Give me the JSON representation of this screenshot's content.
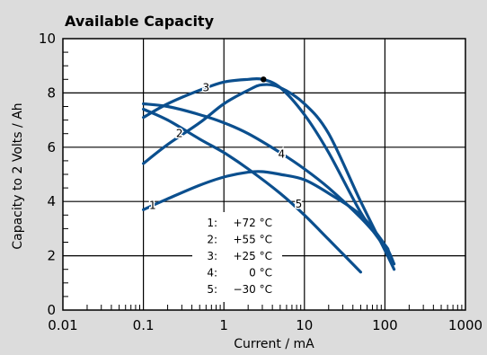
{
  "chart_data": {
    "type": "line",
    "title": "Available Capacity",
    "xlabel": "Current / mA",
    "ylabel": "Capacity to 2 Volts / Ah",
    "x_scale": "log",
    "xlim": [
      0.01,
      1000
    ],
    "ylim": [
      0,
      10
    ],
    "x_ticks": [
      "0.01",
      "0.1",
      "1",
      "10",
      "100",
      "1000"
    ],
    "y_ticks": [
      "0",
      "2",
      "4",
      "6",
      "8",
      "10"
    ],
    "grid": true,
    "line_color": "#0b4f8e",
    "background": "#dcdcdc",
    "series": [
      {
        "name": "1",
        "x": [
          0.1,
          0.2,
          0.5,
          1,
          2,
          3,
          5,
          10,
          20,
          50,
          100,
          130
        ],
        "y": [
          3.7,
          4.1,
          4.6,
          4.9,
          5.08,
          5.1,
          5.0,
          4.8,
          4.3,
          3.5,
          2.4,
          1.7
        ]
      },
      {
        "name": "2",
        "x": [
          0.1,
          0.2,
          0.5,
          1,
          2,
          3,
          5,
          10,
          20,
          50,
          100,
          130
        ],
        "y": [
          5.4,
          6.1,
          6.9,
          7.6,
          8.1,
          8.3,
          8.2,
          7.6,
          6.5,
          4.0,
          2.2,
          1.5
        ]
      },
      {
        "name": "3",
        "x": [
          0.1,
          0.2,
          0.5,
          1,
          2,
          3,
          5,
          10,
          20,
          50,
          100,
          110
        ],
        "y": [
          7.1,
          7.6,
          8.1,
          8.4,
          8.5,
          8.5,
          8.2,
          7.2,
          5.8,
          3.6,
          2.3,
          2.0
        ]
      },
      {
        "name": "4",
        "x": [
          0.1,
          0.2,
          0.5,
          1,
          2,
          5,
          10,
          20,
          50,
          100,
          110
        ],
        "y": [
          7.6,
          7.5,
          7.2,
          6.9,
          6.5,
          5.8,
          5.2,
          4.5,
          3.4,
          2.4,
          2.2
        ]
      },
      {
        "name": "5",
        "x": [
          0.1,
          0.2,
          0.5,
          1,
          2,
          5,
          10,
          20,
          50
        ],
        "y": [
          7.4,
          7.0,
          6.3,
          5.8,
          5.2,
          4.3,
          3.5,
          2.6,
          1.4
        ]
      }
    ],
    "curve_labels": [
      {
        "text": "1",
        "x": 0.13,
        "y": 3.85
      },
      {
        "text": "2",
        "x": 0.28,
        "y": 6.5
      },
      {
        "text": "3",
        "x": 0.6,
        "y": 8.2
      },
      {
        "text": "4",
        "x": 5.2,
        "y": 5.75
      },
      {
        "text": "5",
        "x": 8.5,
        "y": 3.9
      }
    ],
    "marker": {
      "x": 3.1,
      "y": 8.5
    },
    "legend": {
      "placement": "bottom-center",
      "entries": [
        {
          "id": "1:",
          "temp": "+72 °C"
        },
        {
          "id": "2:",
          "temp": "+55 °C"
        },
        {
          "id": "3:",
          "temp": "+25 °C"
        },
        {
          "id": "4:",
          "temp": "0 °C"
        },
        {
          "id": "5:",
          "temp": "−30 °C"
        }
      ]
    }
  }
}
